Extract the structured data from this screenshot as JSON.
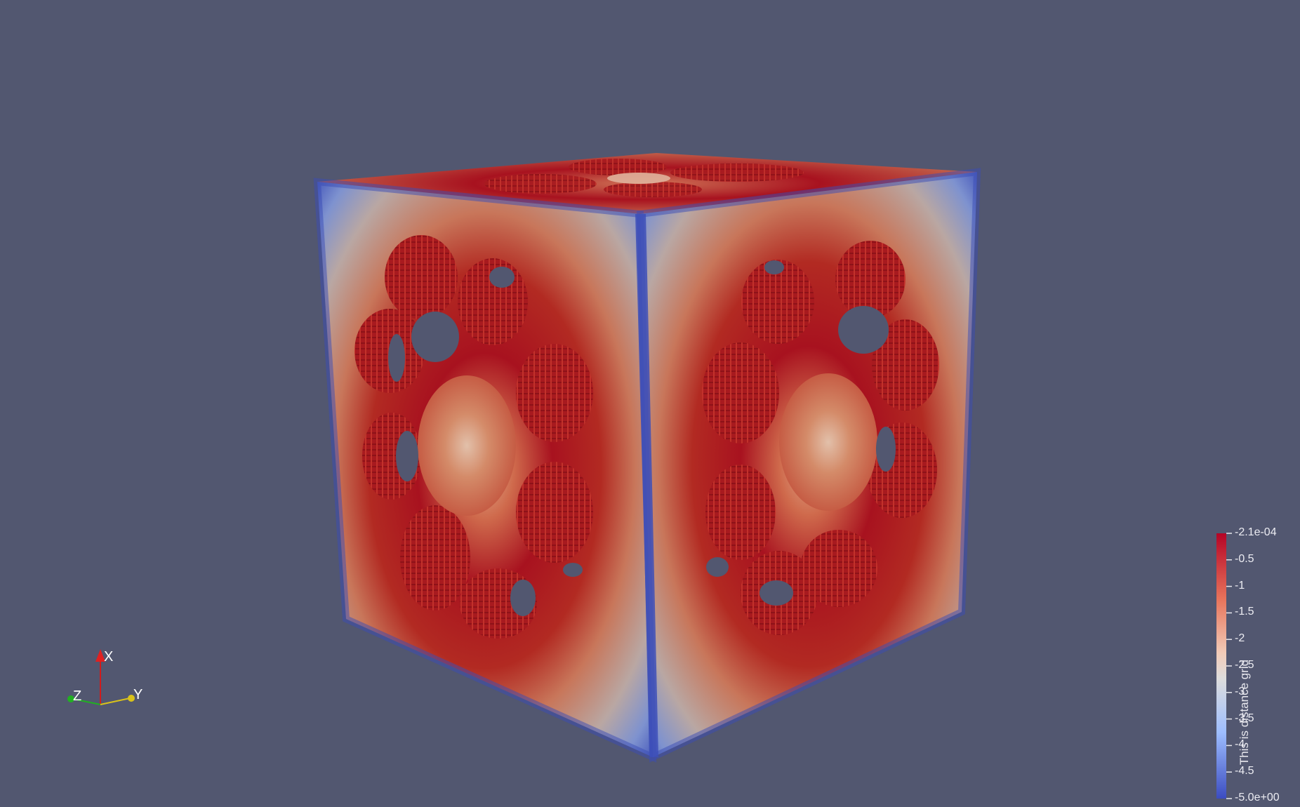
{
  "colors": {
    "background": "#525770",
    "colormap_low": "#3b4cc0",
    "colormap_mid": "#dddddd",
    "colormap_high": "#b40426",
    "axis_x": "#d01c1c",
    "axis_y": "#d9c21a",
    "axis_z": "#21b021"
  },
  "scene": {
    "object": "cube",
    "surface_coloring": "distance-field",
    "pattern": "ring of eight voxelized spheres on each visible face"
  },
  "orientation_axes": {
    "x_label": "X",
    "y_label": "Y",
    "z_label": "Z"
  },
  "scalar_bar": {
    "title": "This is distance grid",
    "range": [
      -5.0,
      -0.00021
    ],
    "tick_labels": [
      "-2.1e-04",
      "-0.5",
      "-1",
      "-1.5",
      "-2",
      "-2.5",
      "-3",
      "-3.5",
      "-4",
      "-4.5",
      "-5.0e+00"
    ],
    "tick_values": [
      -0.00021,
      -0.5,
      -1,
      -1.5,
      -2,
      -2.5,
      -3,
      -3.5,
      -4,
      -4.5,
      -5.0
    ]
  }
}
